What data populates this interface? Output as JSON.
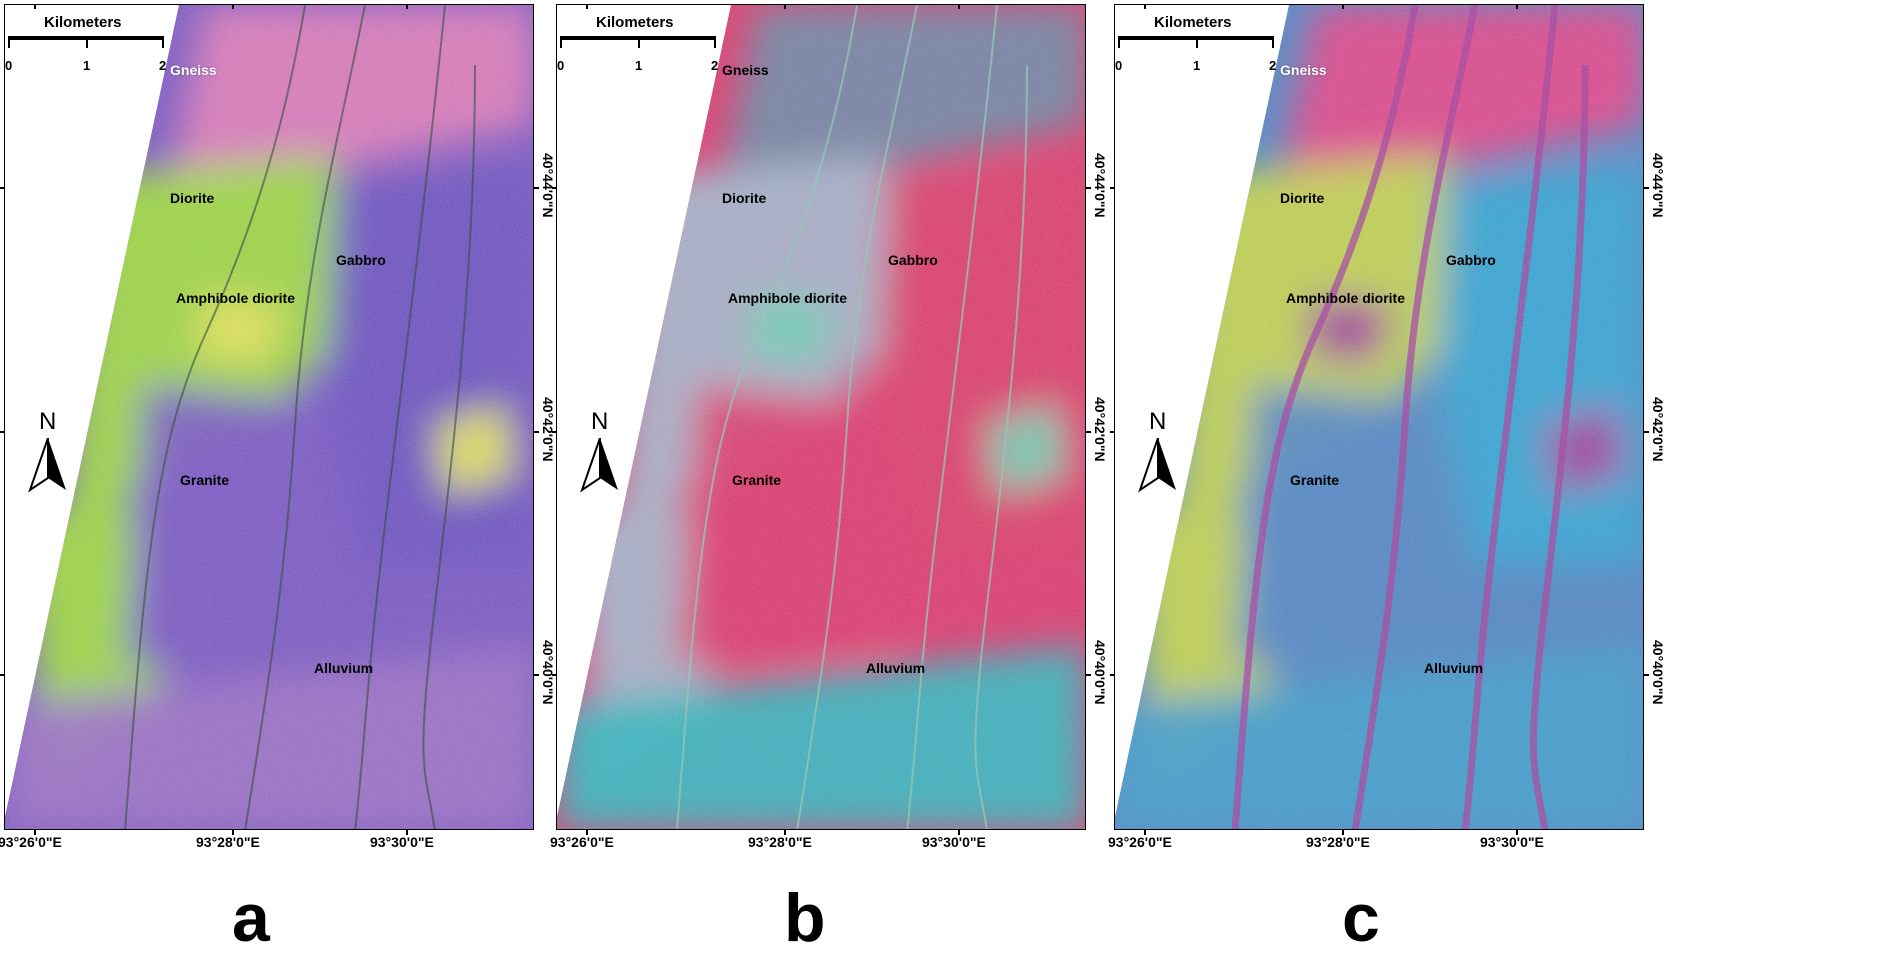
{
  "scale_bar": {
    "title": "Kilometers",
    "ticks": [
      "0",
      "1",
      "2"
    ]
  },
  "north_arrow": {
    "letter": "N",
    "icon": "north-arrow-icon"
  },
  "x_axis_labels": [
    "93°26'0\"E",
    "93°28'0\"E",
    "93°30'0\"E"
  ],
  "y_axis_labels": [
    "40°44'0\"N",
    "40°42'0\"N",
    "40°40'0\"N"
  ],
  "rock_units": {
    "gneiss": "Gneiss",
    "diorite": "Diorite",
    "gabbro": "Gabbro",
    "amphibole_diorite": "Amphibole diorite",
    "granite": "Granite",
    "alluvium": "Alluvium"
  },
  "panels": [
    {
      "letter": "a",
      "palette": {
        "gneiss": "#e37bbd",
        "diorite": "#9fe03a",
        "gabbro": "#6a4fc4",
        "granite": "#7a55c8",
        "alluvium": "#9c6fc9",
        "accent": "#e9e85a"
      }
    },
    {
      "letter": "b",
      "palette": {
        "gneiss": "#6f86a6",
        "diorite": "#a7b6cf",
        "gabbro": "#e03a6a",
        "granite": "#e2366e",
        "alluvium": "#2fb8c2",
        "accent": "#6fd2b8"
      }
    },
    {
      "letter": "c",
      "palette": {
        "gneiss": "#e8418a",
        "diorite": "#c8d84a",
        "gabbro": "#2fa6d8",
        "granite": "#4f86c8",
        "alluvium": "#3c9ed0",
        "accent": "#a53a9f"
      }
    }
  ]
}
